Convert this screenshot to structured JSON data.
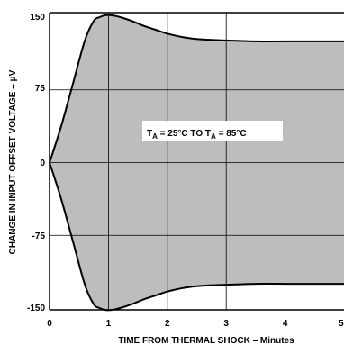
{
  "chart_data": {
    "type": "area",
    "title": "",
    "xlabel": "TIME FROM THERMAL SHOCK – Minutes",
    "ylabel": "CHANGE IN INPUT OFFSET VOLTAGE – μV",
    "xlim": [
      0,
      5
    ],
    "ylim": [
      -150,
      150
    ],
    "x_ticks": [
      "0",
      "1",
      "2",
      "3",
      "4",
      "5"
    ],
    "y_ticks": [
      "150",
      "75",
      "0",
      "-75",
      "-150"
    ],
    "grid": true,
    "annotation": {
      "main": "T",
      "sub1": "A",
      "mid": " = 25°C TO T",
      "sub2": "A",
      "end": " = 85°C"
    },
    "series": [
      {
        "x": [
          0,
          0.2,
          0.4,
          0.6,
          0.75,
          0.85,
          0.95,
          1.05,
          1.2,
          1.4,
          1.6,
          1.8,
          2.0,
          2.3,
          2.6,
          3.0,
          3.5,
          4.0,
          4.5,
          5.0
        ],
        "upper": [
          0,
          38,
          82,
          126,
          146,
          150,
          152,
          152,
          150,
          146,
          141,
          137,
          133,
          129,
          127,
          126,
          125,
          125,
          125,
          125
        ],
        "lower": [
          0,
          -38,
          -82,
          -126,
          -146,
          -150,
          -152,
          -152,
          -150,
          -146,
          -141,
          -137,
          -133,
          -129,
          -127,
          -126,
          -125,
          -125,
          -125,
          -125
        ]
      }
    ],
    "colors": {
      "fill": "#bdbdbd",
      "outline": "#000000",
      "grid": "#000000"
    }
  }
}
